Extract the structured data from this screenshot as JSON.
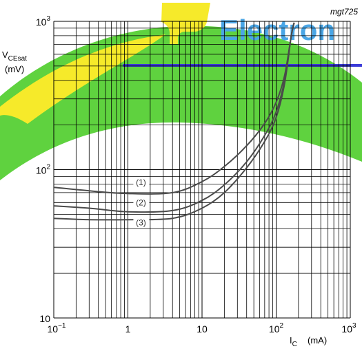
{
  "watermark": {
    "text": "Electron",
    "colors": {
      "band": "#5fd23f",
      "swoosh": "#f6ea2a",
      "text": "#4aa6e6",
      "line": "#3a3ad8"
    }
  },
  "chart_data": {
    "type": "line",
    "figure_id": "mgt725",
    "x_scale": "log",
    "y_scale": "log",
    "xlim": [
      0.1,
      1000
    ],
    "ylim": [
      10,
      1000
    ],
    "xlabel_base": "I",
    "xlabel_sub": "C",
    "xlabel_unit": "(mA)",
    "ylabel_base": "V",
    "ylabel_sub": "CEsat",
    "ylabel_unit": "(mV)",
    "x_ticks": [
      {
        "value": 0.1,
        "base": "10",
        "exp": "−1"
      },
      {
        "value": 1,
        "base": "1",
        "exp": ""
      },
      {
        "value": 10,
        "base": "10",
        "exp": ""
      },
      {
        "value": 100,
        "base": "10",
        "exp": "2"
      },
      {
        "value": 1000,
        "base": "10",
        "exp": "3"
      }
    ],
    "y_ticks": [
      {
        "value": 10,
        "base": "10",
        "exp": ""
      },
      {
        "value": 100,
        "base": "10",
        "exp": "2"
      },
      {
        "value": 1000,
        "base": "10",
        "exp": "3"
      }
    ],
    "grid": true,
    "series": [
      {
        "name": "(1)",
        "label_at": [
          1.5,
          82
        ],
        "points": [
          [
            0.1,
            76
          ],
          [
            0.3,
            72
          ],
          [
            1,
            69
          ],
          [
            4,
            70
          ],
          [
            10,
            83
          ],
          [
            20,
            105
          ],
          [
            40,
            145
          ],
          [
            70,
            205
          ],
          [
            100,
            285
          ],
          [
            130,
            430
          ],
          [
            160,
            800
          ],
          [
            175,
            980
          ]
        ]
      },
      {
        "name": "(2)",
        "label_at": [
          1.5,
          60
        ],
        "points": [
          [
            0.1,
            57
          ],
          [
            0.3,
            55
          ],
          [
            1,
            52
          ],
          [
            4,
            53
          ],
          [
            10,
            62
          ],
          [
            20,
            79
          ],
          [
            40,
            113
          ],
          [
            70,
            170
          ],
          [
            100,
            245
          ],
          [
            130,
            400
          ],
          [
            160,
            800
          ],
          [
            175,
            980
          ]
        ]
      },
      {
        "name": "(3)",
        "label_at": [
          1.5,
          44
        ],
        "points": [
          [
            0.1,
            47
          ],
          [
            0.3,
            46
          ],
          [
            1,
            46
          ],
          [
            4,
            47
          ],
          [
            10,
            55
          ],
          [
            20,
            70
          ],
          [
            40,
            103
          ],
          [
            70,
            155
          ],
          [
            100,
            225
          ],
          [
            130,
            380
          ],
          [
            160,
            800
          ],
          [
            175,
            980
          ]
        ]
      }
    ]
  }
}
